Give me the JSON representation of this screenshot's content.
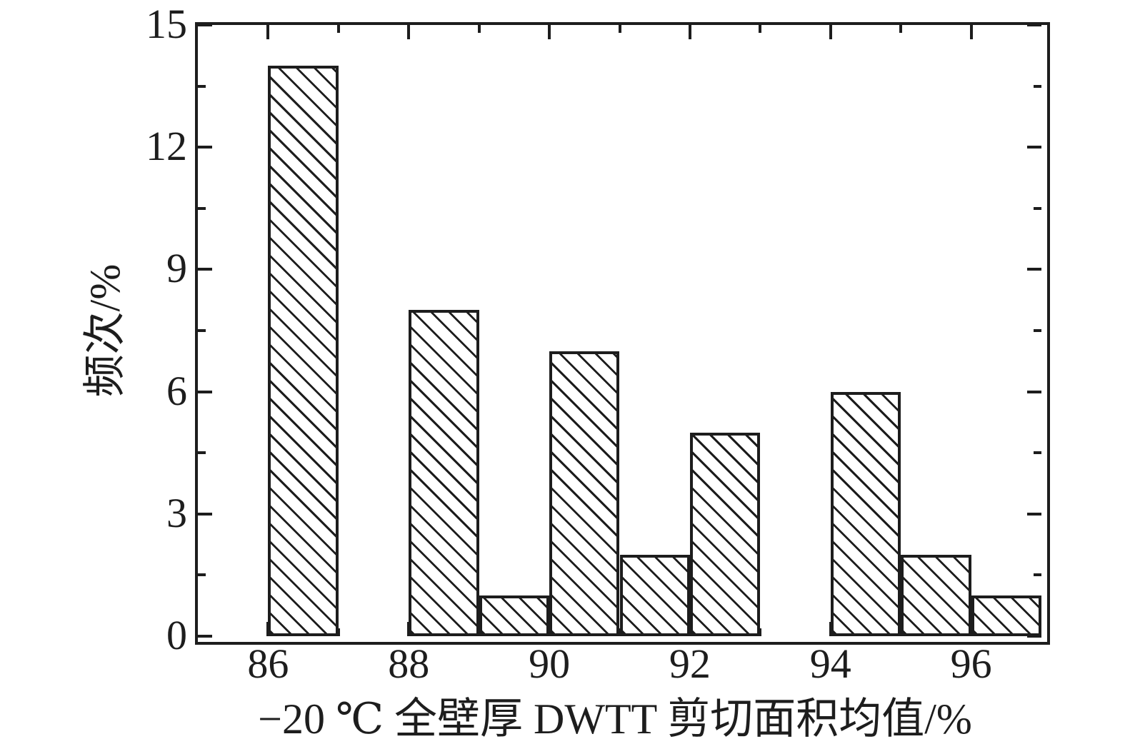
{
  "figure": {
    "background": "#ffffff",
    "ink_color": "#1d1d1d"
  },
  "chart_data": {
    "type": "bar",
    "subtype": "histogram",
    "title": "",
    "xlabel": "−20 ℃ 全壁厚 DWTT 剪切面积均值/%",
    "ylabel": "频次/%",
    "xlim": [
      85,
      97
    ],
    "ylim": [
      0,
      15
    ],
    "grid": "off",
    "legend": "none",
    "bar_style": {
      "fill": "diagonal-backslash-hatch",
      "hatch_color": "#1d1d1d",
      "edge_color": "#1d1d1d",
      "face_color": "#ffffff"
    },
    "bars": [
      {
        "x_start": 86,
        "x_end": 87,
        "value": 14
      },
      {
        "x_start": 88,
        "x_end": 89,
        "value": 8
      },
      {
        "x_start": 89,
        "x_end": 90,
        "value": 1
      },
      {
        "x_start": 90,
        "x_end": 91,
        "value": 7
      },
      {
        "x_start": 91,
        "x_end": 92,
        "value": 2
      },
      {
        "x_start": 92,
        "x_end": 93,
        "value": 5
      },
      {
        "x_start": 94,
        "x_end": 95,
        "value": 6
      },
      {
        "x_start": 95,
        "x_end": 96,
        "value": 2
      },
      {
        "x_start": 96,
        "x_end": 97,
        "value": 1
      }
    ],
    "x_axis": {
      "major_ticks": [
        86,
        88,
        90,
        92,
        94,
        96
      ],
      "major_tick_labels": [
        "86",
        "88",
        "90",
        "92",
        "94",
        "96"
      ],
      "minor_ticks": [
        87,
        89,
        91,
        93,
        95
      ]
    },
    "y_axis": {
      "major_ticks": [
        0,
        3,
        6,
        9,
        12,
        15
      ],
      "major_tick_labels": [
        "0",
        "3",
        "6",
        "9",
        "12",
        "15"
      ],
      "minor_ticks": [
        1.5,
        4.5,
        7.5,
        10.5,
        13.5
      ]
    },
    "ticks_direction": "in",
    "box": "on"
  }
}
